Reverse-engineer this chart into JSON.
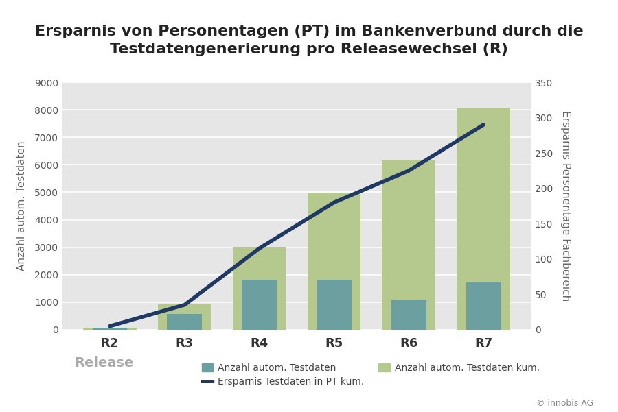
{
  "title": "Ersparnis von Personentagen (PT) im Bankenverbund durch die\nTestdatengenerierung pro Releasewechsel (R)",
  "categories": [
    "R2",
    "R3",
    "R4",
    "R5",
    "R6",
    "R7"
  ],
  "bar_individual": [
    80,
    580,
    1820,
    1820,
    1060,
    1720
  ],
  "bar_cumulative": [
    80,
    950,
    3000,
    4950,
    6150,
    8050
  ],
  "line_values": [
    5,
    35,
    115,
    180,
    225,
    290
  ],
  "ylabel_left": "Anzahl autom. Testdaten",
  "ylabel_right": "Ersparnis Personentage Fachbereich",
  "xlabel": "Release",
  "ylim_left": [
    0,
    9000
  ],
  "ylim_right": [
    0,
    350
  ],
  "yticks_left": [
    0,
    1000,
    2000,
    3000,
    4000,
    5000,
    6000,
    7000,
    8000,
    9000
  ],
  "yticks_right": [
    0,
    50,
    100,
    150,
    200,
    250,
    300,
    350
  ],
  "bar_individual_color": "#6b9fa0",
  "bar_cumulative_color": "#b5c98e",
  "line_color": "#1f3864",
  "plot_bg_color": "#e6e6e6",
  "fig_bg_color": "#ffffff",
  "legend_label_bar1": "Anzahl autom. Testdaten",
  "legend_label_bar2": "Anzahl autom. Testdaten kum.",
  "legend_label_line": "Ersparnis Testdaten in PT kum.",
  "title_fontsize": 16,
  "axis_label_fontsize": 11,
  "tick_fontsize": 10,
  "legend_fontsize": 10,
  "xlabel_fontsize": 14,
  "xtick_fontsize": 13,
  "watermark": "© innobis AG"
}
